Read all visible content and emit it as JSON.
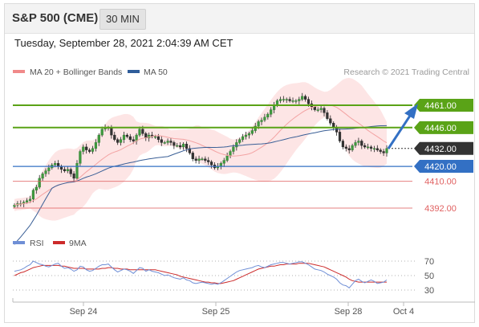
{
  "header": {
    "title": "S&P 500 (CME)",
    "timeframe": "30 MIN"
  },
  "datetime": "Tuesday, September 28, 2021 2:04:39 AM CET",
  "legend": {
    "ma20_label": "MA 20 + Bollinger Bands",
    "ma50_label": "MA 50",
    "credit": "Research © 2021 Trading Central",
    "rsi_label": "RSI",
    "ma9_label": "9MA"
  },
  "colors": {
    "green": "#5aa317",
    "blue": "#3370c4",
    "red": "#e06060",
    "dark": "#333333",
    "ma20": "#f3a3a3",
    "ma50": "#3a5f96",
    "band": "#fde0e0",
    "rsi": "#6f8fd6",
    "ma9": "#cc2a2a"
  },
  "chart_data": [
    {
      "type": "candlestick",
      "x_ticks": [
        "Sep 24",
        "Sep 25",
        "Sep 28",
        "Oct 4"
      ],
      "levels": [
        {
          "value": 4461.0,
          "label": "4461.00",
          "color": "#5aa317",
          "style": "solid"
        },
        {
          "value": 4446.0,
          "label": "4446.00",
          "color": "#5aa317",
          "style": "solid"
        },
        {
          "value": 4432.0,
          "label": "4432.00",
          "color": "#333333",
          "style": "dotted"
        },
        {
          "value": 4420.0,
          "label": "4420.00",
          "color": "#3370c4",
          "style": "solid"
        },
        {
          "value": 4410.0,
          "label": "4410.00",
          "color": "#e06060",
          "style": "thin"
        },
        {
          "value": 4392.0,
          "label": "4392.00",
          "color": "#e06060",
          "style": "thin"
        }
      ],
      "series": [
        {
          "name": "MA 20 + Bollinger Bands"
        },
        {
          "name": "MA 50"
        }
      ],
      "close": [
        4394,
        4395,
        4395,
        4396,
        4397,
        4398,
        4404,
        4406,
        4412,
        4415,
        4417,
        4419,
        4421,
        4422,
        4420,
        4418,
        4417,
        4418,
        4415,
        4412,
        4422,
        4430,
        4433,
        4431,
        4430,
        4432,
        4436,
        4441,
        4445,
        4446,
        4446,
        4441,
        4438,
        4436,
        4438,
        4441,
        4440,
        4438,
        4437,
        4441,
        4445,
        4442,
        4439,
        4441,
        4440,
        4440,
        4438,
        4436,
        4436,
        4437,
        4436,
        4434,
        4434,
        4433,
        4435,
        4432,
        4429,
        4425,
        4424,
        4425,
        4425,
        4424,
        4423,
        4421,
        4419,
        4420,
        4422,
        4424,
        4427,
        4430,
        4433,
        4436,
        4438,
        4440,
        4441,
        4442,
        4444,
        4447,
        4450,
        4451,
        4453,
        4455,
        4458,
        4461,
        4464,
        4465,
        4465,
        4465,
        4464,
        4464,
        4464,
        4465,
        4467,
        4465,
        4462,
        4460,
        4458,
        4458,
        4459,
        4456,
        4452,
        4449,
        4446,
        4443,
        4437,
        4433,
        4432,
        4431,
        4434,
        4436,
        4437,
        4434,
        4433,
        4433,
        4432,
        4432,
        4431,
        4430,
        4429,
        4432
      ],
      "rsi": [
        56,
        57,
        58,
        60,
        63,
        65,
        70,
        68,
        66,
        65,
        63,
        62,
        64,
        66,
        67,
        63,
        60,
        61,
        59,
        56,
        58,
        63,
        62,
        58,
        56,
        57,
        60,
        63,
        65,
        65,
        66,
        62,
        58,
        55,
        57,
        59,
        58,
        56,
        53,
        57,
        61,
        60,
        56,
        58,
        56,
        55,
        54,
        52,
        50,
        51,
        49,
        47,
        46,
        45,
        47,
        44,
        43,
        40,
        39,
        40,
        41,
        40,
        39,
        38,
        39,
        38,
        40,
        43,
        46,
        49,
        52,
        55,
        57,
        58,
        59,
        60,
        61,
        63,
        64,
        62,
        61,
        63,
        65,
        66,
        67,
        68,
        68,
        67,
        66,
        67,
        68,
        69,
        69,
        67,
        65,
        62,
        59,
        58,
        57,
        55,
        52,
        50,
        48,
        45,
        40,
        37,
        36,
        33,
        38,
        43,
        45,
        42,
        40,
        42,
        44,
        42,
        39,
        40,
        41,
        44
      ],
      "ma9": [
        50,
        52,
        54,
        55,
        57,
        59,
        61,
        62,
        63,
        64,
        64,
        64,
        64,
        64,
        64,
        63,
        63,
        62,
        61,
        60,
        60,
        60,
        60,
        59,
        59,
        59,
        59,
        59,
        60,
        60,
        61,
        61,
        60,
        60,
        59,
        59,
        59,
        58,
        58,
        58,
        58,
        58,
        58,
        58,
        58,
        58,
        57,
        56,
        55,
        54,
        53,
        52,
        51,
        49,
        48,
        47,
        46,
        45,
        44,
        43,
        42,
        41,
        41,
        40,
        40,
        39,
        39,
        40,
        41,
        42,
        43,
        45,
        47,
        49,
        51,
        53,
        55,
        57,
        59,
        60,
        61,
        62,
        63,
        63,
        64,
        65,
        65,
        66,
        66,
        66,
        66,
        67,
        67,
        67,
        67,
        66,
        65,
        64,
        63,
        62,
        60,
        58,
        56,
        54,
        52,
        50,
        48,
        45,
        43,
        42,
        41,
        41,
        41,
        41,
        41,
        41,
        41,
        41,
        41,
        41
      ],
      "rsi_ticks": [
        70,
        50,
        30
      ]
    }
  ]
}
